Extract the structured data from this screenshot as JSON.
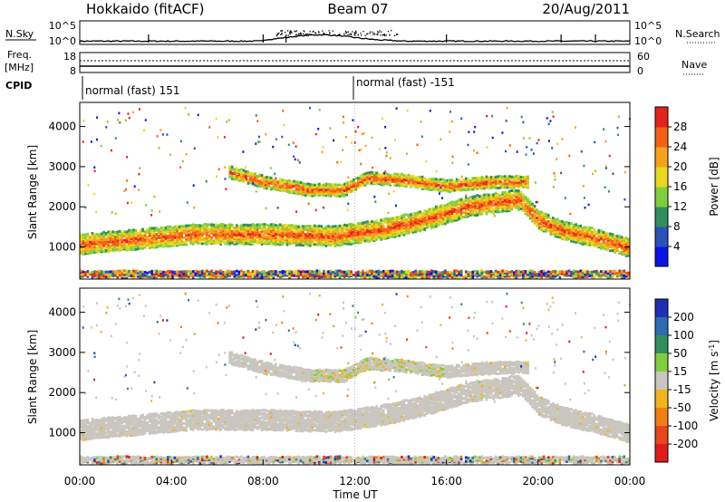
{
  "header": {
    "station": "Hokkaido (fitACF)",
    "beam": "Beam 07",
    "date": "20/Aug/2011"
  },
  "strip_labels": {
    "nsky": "N.Sky",
    "nsearch": "N.Search",
    "freq_line1": "Freq.",
    "freq_line2": "[MHz]",
    "nave": "Nave",
    "cpid": "CPID"
  },
  "noise_axis": {
    "left_top": "10^5",
    "left_bottom": "10^0",
    "right_top": "10^5",
    "right_bottom": "10^0"
  },
  "freq_axis": {
    "left_top": "18",
    "left_bottom": "8",
    "right_top": "60",
    "right_bottom": "0"
  },
  "cpid_segments": [
    {
      "label": "normal (fast) 151",
      "start_hour": 0,
      "end_hour": 12
    },
    {
      "label": "normal (fast) -151",
      "start_hour": 12,
      "end_hour": 24
    }
  ],
  "x_axis": {
    "label": "Time UT",
    "ticks": [
      "00:00",
      "04:00",
      "08:00",
      "12:00",
      "16:00",
      "20:00",
      "00:00"
    ]
  },
  "range_axis": {
    "label": "Slant Range [km]",
    "ticks": [
      "1000",
      "2000",
      "3000",
      "4000"
    ],
    "range_km": [
      200,
      4600
    ]
  },
  "power_scale": {
    "label": "Power [dB]",
    "ticks": [
      "4",
      "8",
      "12",
      "16",
      "20",
      "24",
      "28"
    ],
    "colors": [
      "#0a14e6",
      "#2b52b8",
      "#2f8f5f",
      "#7fcf3c",
      "#e8d81e",
      "#f7a21a",
      "#f46116",
      "#e4231b"
    ]
  },
  "velocity_scale": {
    "label_main": "Velocity [m s",
    "label_sup": "-1",
    "label_end": "]",
    "ticks": [
      "200",
      "100",
      "50",
      "15",
      "-15",
      "-50",
      "-100",
      "-200"
    ],
    "colors": [
      "#1f2fb5",
      "#2b6cb5",
      "#2f8f5f",
      "#7fcf3c",
      "#c8c6bf",
      "#f2b41c",
      "#f07f14",
      "#e9461a",
      "#e01b1b"
    ]
  },
  "chart_data": [
    {
      "type": "heatmap",
      "name": "power",
      "x_range_hours": [
        0,
        24
      ],
      "y_range_km": [
        200,
        4600
      ],
      "bands": [
        {
          "kind": "main",
          "t_start": 0.0,
          "t_end": 19.2,
          "range_km": [
            [
              0,
              1100
            ],
            [
              2,
              1200
            ],
            [
              5,
              1350
            ],
            [
              8,
              1350
            ],
            [
              11,
              1300
            ],
            [
              13,
              1450
            ],
            [
              15,
              1700
            ],
            [
              17,
              2050
            ],
            [
              19,
              2200
            ]
          ],
          "width_km": 500,
          "level": "high"
        },
        {
          "kind": "upper",
          "t_start": 6.5,
          "t_end": 19.5,
          "range_km": [
            [
              6.5,
              2900
            ],
            [
              8,
              2650
            ],
            [
              10,
              2450
            ],
            [
              11.5,
              2450
            ],
            [
              12.5,
              2750
            ],
            [
              14,
              2700
            ],
            [
              16,
              2550
            ],
            [
              18,
              2650
            ],
            [
              19.5,
              2650
            ]
          ],
          "width_km": 300,
          "level": "high"
        },
        {
          "kind": "post",
          "t_start": 19.2,
          "t_end": 24.0,
          "range_km": [
            [
              19.2,
              2200
            ],
            [
              20,
              1700
            ],
            [
              21,
              1450
            ],
            [
              22.5,
              1250
            ],
            [
              24,
              1000
            ]
          ],
          "width_km": 450,
          "level": "high"
        },
        {
          "kind": "low",
          "t_start": 12.0,
          "t_end": 16.0,
          "range_km": [
            [
              12,
              330
            ],
            [
              16,
              330
            ]
          ],
          "width_km": 120,
          "level": "high"
        },
        {
          "kind": "ground",
          "t_start": 0.0,
          "t_end": 24.0,
          "range_km": [
            [
              0,
              330
            ],
            [
              24,
              330
            ]
          ],
          "width_km": 220,
          "level": "mixed"
        }
      ]
    },
    {
      "type": "heatmap",
      "name": "velocity",
      "x_range_hours": [
        0,
        24
      ],
      "y_range_km": [
        200,
        4600
      ],
      "dominant_class": "-15 to 15",
      "notes": "Mostly near-zero velocity scatter (grey) following the same bands as power; scattered positive (green/blue) and negative (orange/red) returns near 2800 km around 10-16 UT and below 800 km around 17-20 UT."
    }
  ]
}
